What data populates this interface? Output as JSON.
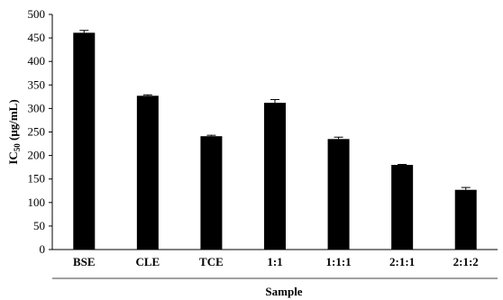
{
  "chart_data": {
    "type": "bar",
    "title": "",
    "xlabel": "Sample",
    "ylabel": {
      "main": "IC",
      "sub": "50",
      "unit": " (μg/mL)"
    },
    "ylim": [
      0,
      500
    ],
    "yticks": [
      0,
      50,
      100,
      150,
      200,
      250,
      300,
      350,
      400,
      450,
      500
    ],
    "categories": [
      "BSE",
      "CLE",
      "TCE",
      "1:1",
      "1:1:1",
      "2:1:1",
      "2:1:2"
    ],
    "values": [
      461,
      327,
      241,
      312,
      235,
      180,
      127
    ],
    "errors": [
      5,
      2,
      2,
      7,
      4,
      1,
      5
    ],
    "bar_color": "#000000",
    "grid": false,
    "legend": "none"
  }
}
